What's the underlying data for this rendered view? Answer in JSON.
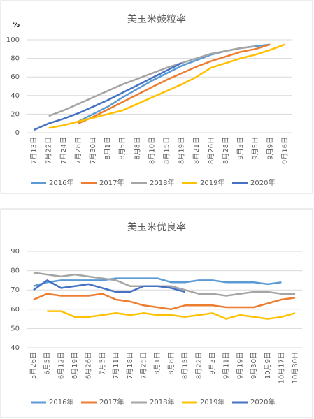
{
  "chart_data": [
    {
      "type": "line",
      "title": "美玉米鼓粒率",
      "y_label": "%",
      "categories": [
        "7月13日",
        "7月22日",
        "7月24日",
        "7月28日",
        "7月30日",
        "8月1日",
        "8月5日",
        "8月8日",
        "8月10日",
        "8月15日",
        "8月19日",
        "8月21日",
        "8月26日",
        "8月28日",
        "9月3日",
        "9月5日",
        "9月9日",
        "9月16日"
      ],
      "ylim": [
        0,
        100
      ],
      "yticks": [
        0,
        20,
        40,
        60,
        80,
        100
      ],
      "grid": true,
      "legend": "bottom",
      "series": [
        {
          "name": "2016年",
          "color": "#5b9bd5",
          "values": [
            null,
            null,
            null,
            12,
            20,
            28,
            38,
            47,
            56,
            64,
            72,
            78,
            84,
            88,
            91,
            93,
            95,
            null
          ]
        },
        {
          "name": "2017年",
          "color": "#ed7d31",
          "values": [
            null,
            null,
            null,
            10,
            17,
            25,
            33,
            41,
            49,
            57,
            64,
            71,
            77,
            82,
            87,
            90,
            95,
            null
          ]
        },
        {
          "name": "2018年",
          "color": "#a5a5a5",
          "values": [
            null,
            18,
            24,
            31,
            38,
            45,
            52,
            58,
            64,
            70,
            75,
            80,
            85,
            88,
            91,
            93,
            null,
            null
          ]
        },
        {
          "name": "2019年",
          "color": "#ffc000",
          "values": [
            null,
            5,
            8,
            12,
            16,
            20,
            24,
            31,
            38,
            45,
            52,
            60,
            70,
            75,
            80,
            84,
            89,
            95
          ]
        },
        {
          "name": "2020年",
          "color": "#4472c4",
          "values": [
            3,
            10,
            15,
            21,
            28,
            35,
            43,
            51,
            59,
            67,
            75,
            null,
            null,
            null,
            null,
            null,
            null,
            null
          ]
        }
      ]
    },
    {
      "type": "line",
      "title": "美玉米优良率",
      "categories": [
        "5月26日",
        "6月5日",
        "6月12日",
        "6月19日",
        "6月26日",
        "7月5日",
        "7月11日",
        "7月18日",
        "7月25日",
        "8月1日",
        "8月8日",
        "8月15日",
        "8月22日",
        "9月3日",
        "9月11日",
        "9月19日",
        "9月30日",
        "10月9日",
        "10月17日",
        "10月30日"
      ],
      "ylim": [
        40,
        90
      ],
      "yticks": [
        40,
        50,
        60,
        70,
        80,
        90
      ],
      "grid": true,
      "legend": "bottom",
      "series": [
        {
          "name": "2016年",
          "color": "#5b9bd5",
          "values": [
            72,
            74,
            75,
            75,
            75,
            75,
            76,
            76,
            76,
            76,
            74,
            74,
            75,
            75,
            74,
            74,
            74,
            73,
            74,
            null
          ]
        },
        {
          "name": "2017年",
          "color": "#ed7d31",
          "values": [
            65,
            68,
            67,
            67,
            67,
            68,
            65,
            64,
            62,
            61,
            60,
            62,
            62,
            62,
            61,
            61,
            61,
            63,
            65,
            66
          ]
        },
        {
          "name": "2018年",
          "color": "#a5a5a5",
          "values": [
            79,
            78,
            77,
            78,
            77,
            76,
            75,
            72,
            72,
            72,
            72,
            70,
            68,
            68,
            67,
            68,
            69,
            69,
            68,
            68
          ]
        },
        {
          "name": "2019年",
          "color": "#ffc000",
          "values": [
            null,
            59,
            59,
            56,
            56,
            57,
            58,
            57,
            58,
            57,
            57,
            56,
            57,
            58,
            55,
            57,
            56,
            55,
            56,
            58
          ]
        },
        {
          "name": "2020年",
          "color": "#4472c4",
          "values": [
            70,
            75,
            71,
            72,
            73,
            71,
            69,
            69,
            72,
            72,
            71,
            69,
            null,
            null,
            null,
            null,
            null,
            null,
            null,
            null
          ]
        }
      ]
    }
  ]
}
